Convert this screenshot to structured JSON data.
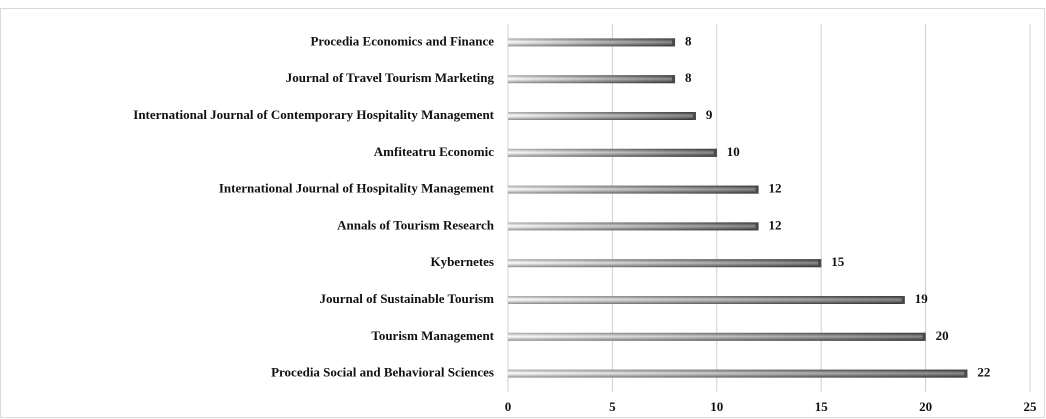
{
  "chart_data": {
    "type": "bar",
    "orientation": "horizontal",
    "categories": [
      "Procedia Economics and Finance",
      "Journal of Travel Tourism Marketing",
      "International Journal of Contemporary Hospitality Management",
      "Amfiteatru Economic",
      "International Journal of Hospitality Management",
      "Annals of Tourism Research",
      "Kybernetes",
      "Journal of Sustainable Tourism",
      "Tourism Management",
      "Procedia Social and Behavioral Sciences"
    ],
    "values": [
      8,
      8,
      9,
      10,
      12,
      12,
      15,
      19,
      20,
      22
    ],
    "color": "#4a4a4a",
    "xlim": [
      0,
      25
    ],
    "xticks": [
      0,
      5,
      10,
      15,
      20,
      25
    ],
    "grid": true
  }
}
